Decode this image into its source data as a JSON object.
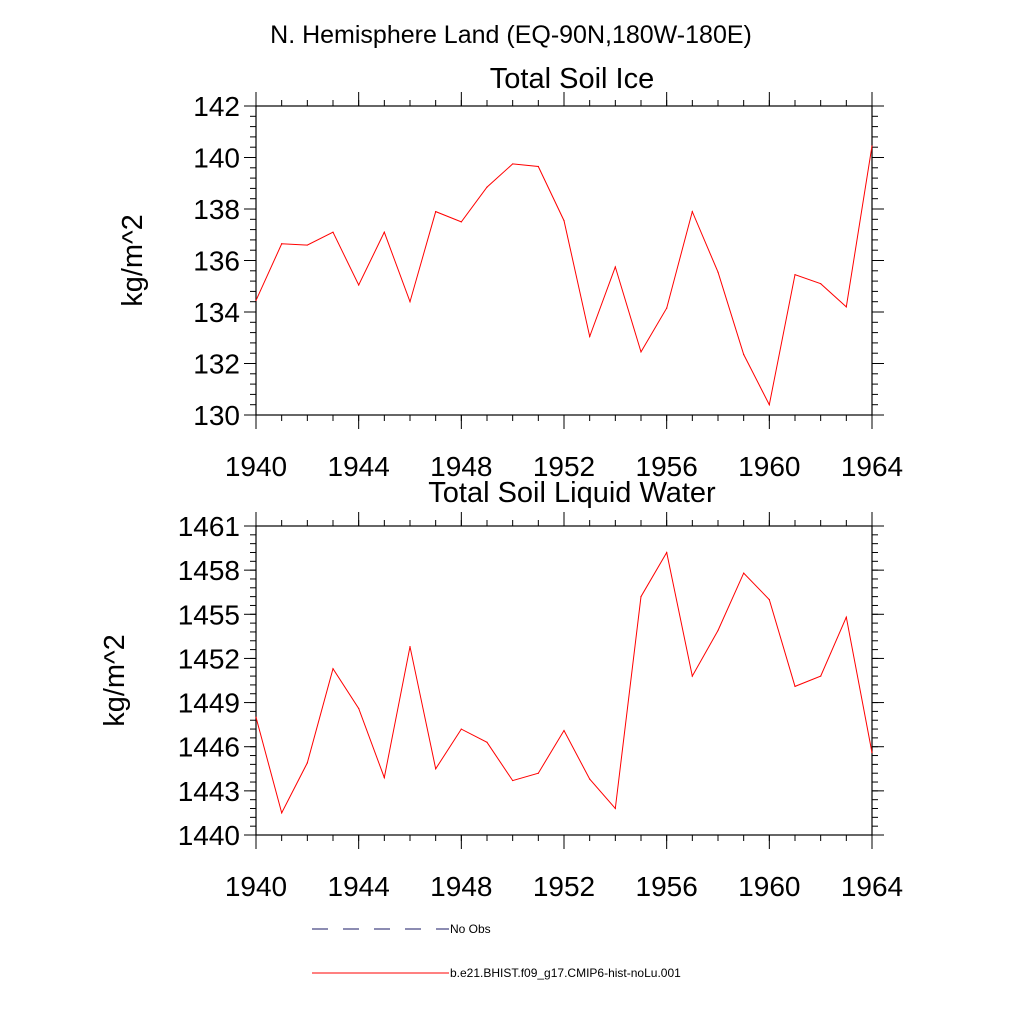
{
  "figure": {
    "suptitle": "N. Hemisphere Land (EQ-90N,180W-180E)"
  },
  "chart_data": [
    {
      "type": "line",
      "title": "Total Soil Ice",
      "xlabel": "",
      "ylabel": "kg/m^2",
      "xlim": [
        1940,
        1964
      ],
      "ylim": [
        130,
        142
      ],
      "xticks": [
        1940,
        1944,
        1948,
        1952,
        1956,
        1960,
        1964
      ],
      "yticks": [
        130,
        132,
        134,
        136,
        138,
        140,
        142
      ],
      "y_minor_step": 0.4,
      "x_minor_step": 1,
      "grid": false,
      "series": [
        {
          "name": "b.e21.BHIST.f09_g17.CMIP6-hist-noLu.001",
          "color": "#ff0000",
          "x": [
            1940,
            1941,
            1942,
            1943,
            1944,
            1945,
            1946,
            1947,
            1948,
            1949,
            1950,
            1951,
            1952,
            1953,
            1954,
            1955,
            1956,
            1957,
            1958,
            1959,
            1960,
            1961,
            1962,
            1963,
            1964
          ],
          "y": [
            134.45,
            136.65,
            136.6,
            137.1,
            135.05,
            137.1,
            134.4,
            137.9,
            137.5,
            138.85,
            139.75,
            139.65,
            137.55,
            133.05,
            135.75,
            132.45,
            134.15,
            137.9,
            135.55,
            132.35,
            130.4,
            135.45,
            135.1,
            134.2,
            140.45
          ]
        }
      ]
    },
    {
      "type": "line",
      "title": "Total Soil Liquid Water",
      "xlabel": "",
      "ylabel": "kg/m^2",
      "xlim": [
        1940,
        1964
      ],
      "ylim": [
        1440,
        1461
      ],
      "xticks": [
        1940,
        1944,
        1948,
        1952,
        1956,
        1960,
        1964
      ],
      "yticks": [
        1440,
        1443,
        1446,
        1449,
        1452,
        1455,
        1458,
        1461
      ],
      "y_minor_step": 0.6,
      "x_minor_step": 1,
      "grid": false,
      "series": [
        {
          "name": "b.e21.BHIST.f09_g17.CMIP6-hist-noLu.001",
          "color": "#ff0000",
          "x": [
            1940,
            1941,
            1942,
            1943,
            1944,
            1945,
            1946,
            1947,
            1948,
            1949,
            1950,
            1951,
            1952,
            1953,
            1954,
            1955,
            1956,
            1957,
            1958,
            1959,
            1960,
            1961,
            1962,
            1963,
            1964
          ],
          "y": [
            1448.0,
            1441.5,
            1444.9,
            1451.3,
            1448.6,
            1443.9,
            1452.8,
            1444.5,
            1447.2,
            1446.3,
            1443.7,
            1444.2,
            1447.1,
            1443.8,
            1441.8,
            1456.2,
            1459.2,
            1450.8,
            1453.9,
            1457.8,
            1456.0,
            1450.1,
            1450.8,
            1454.8,
            1445.6
          ]
        }
      ]
    }
  ],
  "legend": {
    "placement": "bottom-center",
    "items": [
      {
        "label": "No Obs",
        "color": "#1a1a66",
        "dash": "dashed"
      },
      {
        "label": "b.e21.BHIST.f09_g17.CMIP6-hist-noLu.001",
        "color": "#ff0000",
        "dash": "solid"
      }
    ]
  }
}
